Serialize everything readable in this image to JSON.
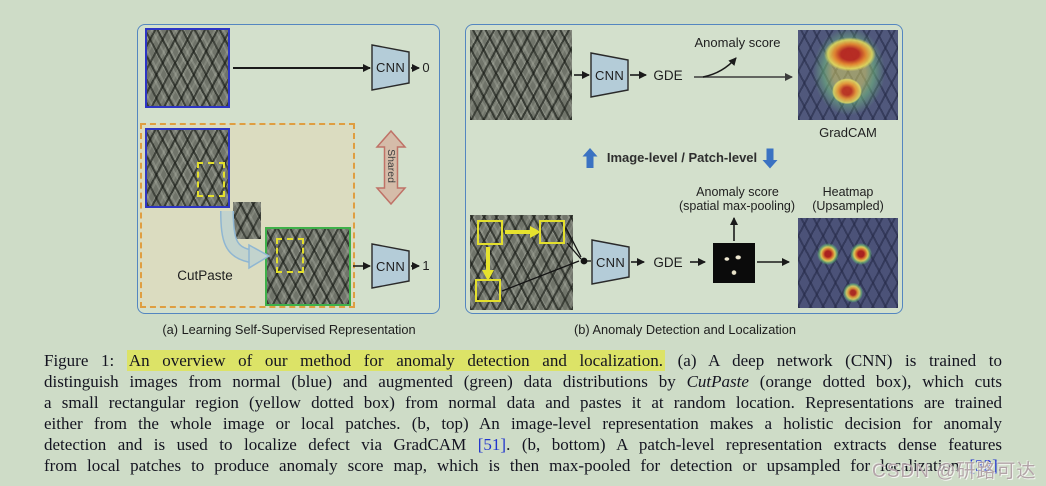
{
  "figure": {
    "panel_a": {
      "caption": "(a) Learning Self-Supervised Representation",
      "cnn_top_label": "CNN",
      "cnn_bottom_label": "CNN",
      "output_normal": "0",
      "output_augmented": "1",
      "cutpaste_label": "CutPaste",
      "shared_label": "Shared"
    },
    "panel_b": {
      "caption": "(b) Anomaly Detection and Localization",
      "top": {
        "cnn_label": "CNN",
        "gde_label": "GDE",
        "anomaly_score_label": "Anomaly score",
        "gradcam_label": "GradCAM"
      },
      "mode_toggle_label": "Image-level / Patch-level",
      "bottom": {
        "cnn_label": "CNN",
        "gde_label": "GDE",
        "anomaly_score_line1": "Anomaly score",
        "anomaly_score_line2": "(spatial max-pooling)",
        "heatmap_line1": "Heatmap",
        "heatmap_line2": "(Upsampled)"
      }
    }
  },
  "caption": {
    "lines": [
      [
        {
          "t": "Figure 1:  ",
          "s": "n"
        },
        {
          "t": "An overview of our method for anomaly detection and localization.",
          "s": "hl"
        },
        {
          "t": "  (a) A deep network (CNN) is trained to",
          "s": "n"
        }
      ],
      [
        {
          "t": "distinguish images from normal (blue) and augmented (green) data distributions by ",
          "s": "n"
        },
        {
          "t": "CutPaste",
          "s": "i"
        },
        {
          "t": " (orange dotted box), which cuts",
          "s": "n"
        }
      ],
      [
        {
          "t": "a small rectangular region (yellow dotted box) from normal data and pastes it at random location. Representations are trained",
          "s": "n"
        }
      ],
      [
        {
          "t": "either from the whole image or local patches. (b, top) An image-level representation makes a holistic decision for anomaly",
          "s": "n"
        }
      ],
      [
        {
          "t": "detection and is used to localize defect via GradCAM ",
          "s": "n"
        },
        {
          "t": "[51]",
          "s": "c"
        },
        {
          "t": ". (b, bottom) A patch-level representation extracts dense features",
          "s": "n"
        }
      ],
      [
        {
          "t": "from local patches to produce anomaly score map, which is then max-pooled for detection or upsampled for localization ",
          "s": "n"
        },
        {
          "t": "[32]",
          "s": "c"
        },
        {
          "t": ".",
          "s": "n"
        }
      ]
    ]
  },
  "watermark": "CSDN @研路可达",
  "colors": {
    "page_background": "#cedcc7",
    "panel_border_blue": "#5486c0",
    "normal_image_border_blue": "#2d35c5",
    "augmented_image_border_green": "#3fb04a",
    "cutpaste_box_orange": "#df9e41",
    "patch_box_yellow": "#e3df2d",
    "cnn_fill": "#b4ccd8",
    "shared_arrow_fill": "#d5bca9",
    "shared_arrow_stroke": "#bf7267",
    "mode_arrow_blue": "#3a72c2",
    "citation_blue": "#2135cd",
    "caption_highlight": "#dce367"
  }
}
